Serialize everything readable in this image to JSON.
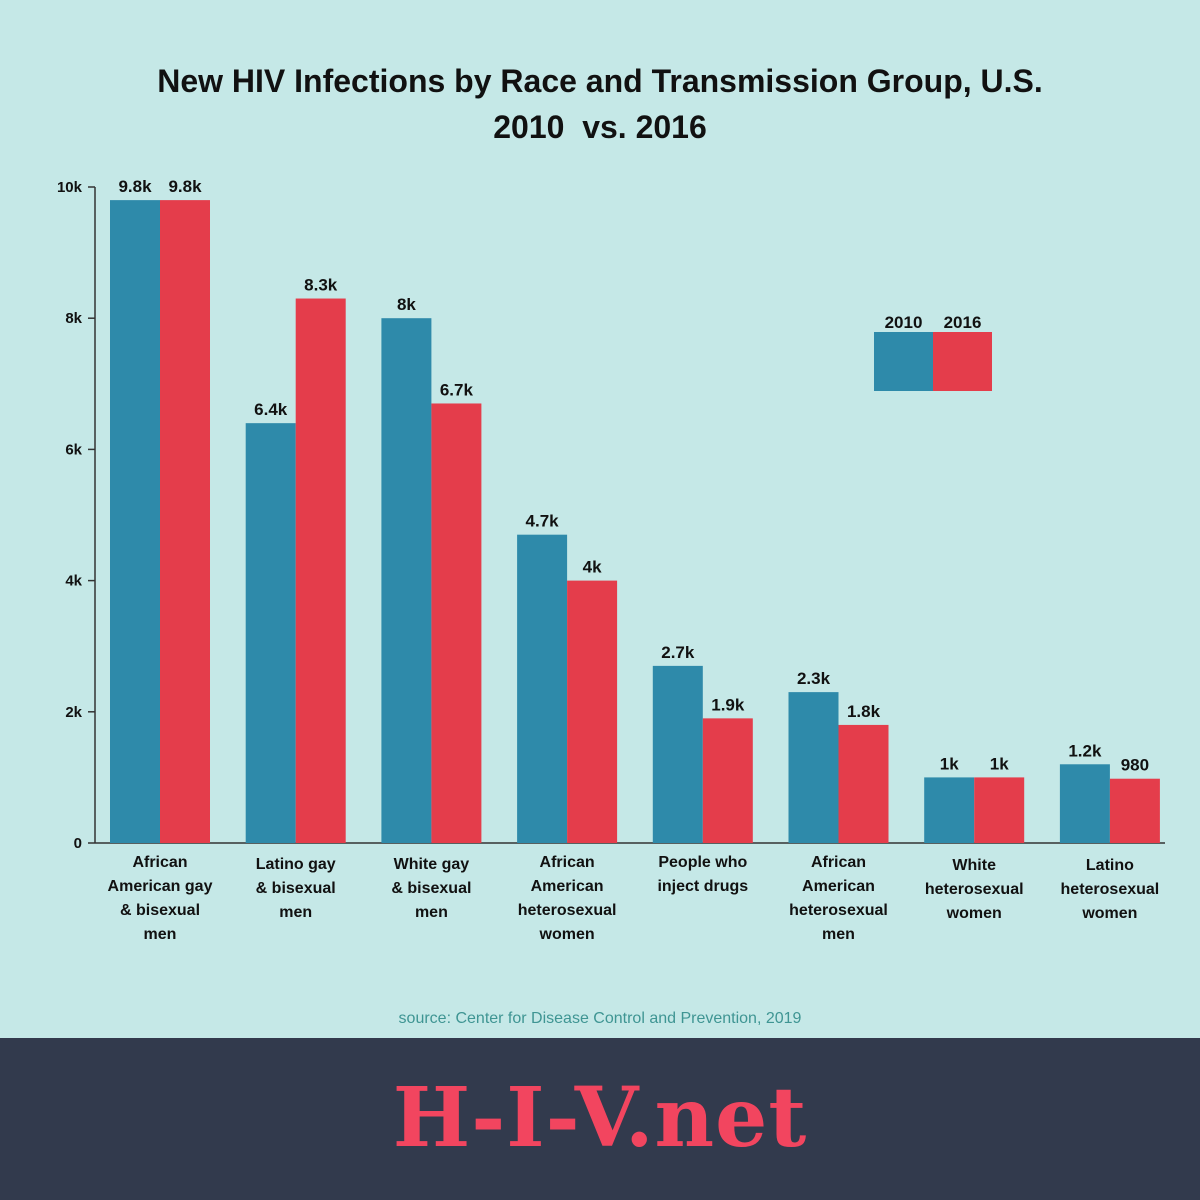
{
  "chart_data": {
    "type": "bar",
    "title_line1": "New HIV Infections by Race and Transmission Group, U.S.",
    "title_line2": "2010  vs. 2016",
    "xlabel": "",
    "ylabel": "",
    "ylim": [
      0,
      10000
    ],
    "yticks": [
      {
        "value": 0,
        "label": "0"
      },
      {
        "value": 2000,
        "label": "2k"
      },
      {
        "value": 4000,
        "label": "4k"
      },
      {
        "value": 6000,
        "label": "6k"
      },
      {
        "value": 8000,
        "label": "8k"
      },
      {
        "value": 10000,
        "label": "10k"
      }
    ],
    "categories": [
      [
        "African",
        "American gay",
        "& bisexual",
        "men"
      ],
      [
        "Latino gay",
        "& bisexual",
        "men"
      ],
      [
        "White gay",
        "& bisexual",
        "men"
      ],
      [
        "African",
        "American",
        "heterosexual",
        "women"
      ],
      [
        "People who",
        "inject drugs"
      ],
      [
        "African",
        "American",
        "heterosexual",
        "men"
      ],
      [
        "White",
        "heterosexual",
        "women"
      ],
      [
        "Latino",
        "heterosexual",
        "women"
      ]
    ],
    "series": [
      {
        "name": "2010",
        "color": "#2e8aaa",
        "values": [
          9800,
          6400,
          8000,
          4700,
          2700,
          2300,
          1000,
          1200
        ],
        "labels": [
          "9.8k",
          "6.4k",
          "8k",
          "4.7k",
          "2.7k",
          "2.3k",
          "1k",
          "1.2k"
        ]
      },
      {
        "name": "2016",
        "color": "#e43d4b",
        "values": [
          9800,
          8300,
          6700,
          4000,
          1900,
          1800,
          1000,
          980
        ],
        "labels": [
          "9.8k",
          "8.3k",
          "6.7k",
          "4k",
          "1.9k",
          "1.8k",
          "1k",
          "980"
        ]
      }
    ],
    "grid": false,
    "legend": "top-right"
  },
  "source": "source: Center for Disease Control and Prevention, 2019",
  "brand": "H-I-V.net"
}
